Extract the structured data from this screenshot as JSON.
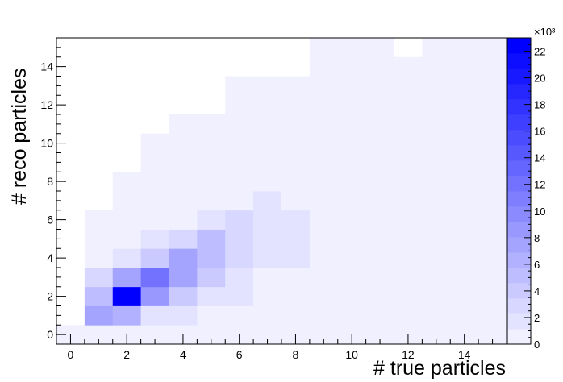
{
  "chart_data": {
    "type": "heatmap",
    "title": "",
    "xlabel": "# true particles",
    "ylabel": "# reco particles",
    "xlim": [
      -0.5,
      15.5
    ],
    "ylim": [
      -0.5,
      15.5
    ],
    "x_ticks": [
      "0",
      "2",
      "4",
      "6",
      "8",
      "10",
      "12",
      "14"
    ],
    "y_ticks": [
      "0",
      "2",
      "4",
      "6",
      "8",
      "10",
      "12",
      "14"
    ],
    "colorbar": {
      "range": [
        0,
        23
      ],
      "multiplier": "×10³",
      "ticks": [
        "0",
        "2",
        "4",
        "6",
        "8",
        "10",
        "12",
        "14",
        "16",
        "18",
        "20",
        "22"
      ],
      "low_color": "#f0f0ff",
      "high_color": "#0000ff"
    },
    "z_unit": "thousands",
    "cells": [
      [
        0,
        0,
        0
      ],
      [
        1,
        0,
        0.1
      ],
      [
        2,
        0,
        0.1
      ],
      [
        3,
        0,
        0.1
      ],
      [
        4,
        0,
        0.1
      ],
      [
        5,
        0,
        0.1
      ],
      [
        6,
        0,
        0.1
      ],
      [
        7,
        0,
        0.1
      ],
      [
        8,
        0,
        0.1
      ],
      [
        9,
        0,
        0.1
      ],
      [
        10,
        0,
        0.1
      ],
      [
        11,
        0,
        0.1
      ],
      [
        12,
        0,
        0.1
      ],
      [
        13,
        0,
        0.1
      ],
      [
        14,
        0,
        0.1
      ],
      [
        15,
        0,
        0.1
      ],
      [
        1,
        1,
        8
      ],
      [
        2,
        1,
        6.5
      ],
      [
        3,
        1,
        1.5
      ],
      [
        4,
        1,
        1.5
      ],
      [
        5,
        1,
        0.1
      ],
      [
        6,
        1,
        0.1
      ],
      [
        7,
        1,
        0.1
      ],
      [
        8,
        1,
        0.1
      ],
      [
        9,
        1,
        0.1
      ],
      [
        10,
        1,
        0.1
      ],
      [
        11,
        1,
        0.1
      ],
      [
        12,
        1,
        0.1
      ],
      [
        13,
        1,
        0.1
      ],
      [
        14,
        1,
        0.1
      ],
      [
        15,
        1,
        0.1
      ],
      [
        1,
        2,
        5
      ],
      [
        2,
        2,
        23
      ],
      [
        3,
        2,
        9
      ],
      [
        4,
        2,
        4
      ],
      [
        5,
        2,
        1.5
      ],
      [
        6,
        2,
        1.2
      ],
      [
        7,
        2,
        0.1
      ],
      [
        8,
        2,
        0.1
      ],
      [
        9,
        2,
        0.1
      ],
      [
        10,
        2,
        0.1
      ],
      [
        11,
        2,
        0.1
      ],
      [
        12,
        2,
        0.1
      ],
      [
        13,
        2,
        0.1
      ],
      [
        14,
        2,
        0.1
      ],
      [
        15,
        2,
        0.1
      ],
      [
        1,
        3,
        2.5
      ],
      [
        2,
        3,
        7.5
      ],
      [
        3,
        3,
        12.5
      ],
      [
        4,
        3,
        7
      ],
      [
        5,
        3,
        4
      ],
      [
        6,
        3,
        1.5
      ],
      [
        7,
        3,
        1
      ],
      [
        8,
        3,
        0.1
      ],
      [
        9,
        3,
        0.1
      ],
      [
        10,
        3,
        0.1
      ],
      [
        11,
        3,
        0.1
      ],
      [
        12,
        3,
        0.1
      ],
      [
        13,
        3,
        0.1
      ],
      [
        14,
        3,
        0.1
      ],
      [
        15,
        3,
        0.1
      ],
      [
        1,
        4,
        0.8
      ],
      [
        2,
        4,
        2
      ],
      [
        3,
        4,
        4
      ],
      [
        4,
        4,
        8
      ],
      [
        5,
        4,
        5
      ],
      [
        6,
        4,
        2.5
      ],
      [
        7,
        4,
        1.5
      ],
      [
        8,
        4,
        1.5
      ],
      [
        9,
        4,
        0.1
      ],
      [
        10,
        4,
        0.1
      ],
      [
        11,
        4,
        0.1
      ],
      [
        12,
        4,
        0.1
      ],
      [
        13,
        4,
        0.1
      ],
      [
        14,
        4,
        0.1
      ],
      [
        15,
        4,
        0.1
      ],
      [
        1,
        5,
        0.5
      ],
      [
        2,
        5,
        0.8
      ],
      [
        3,
        5,
        2
      ],
      [
        4,
        5,
        3
      ],
      [
        5,
        5,
        5
      ],
      [
        6,
        5,
        3
      ],
      [
        7,
        5,
        1.5
      ],
      [
        8,
        5,
        1.5
      ],
      [
        9,
        5,
        0.1
      ],
      [
        10,
        5,
        0.1
      ],
      [
        11,
        5,
        0.1
      ],
      [
        12,
        5,
        0.1
      ],
      [
        13,
        5,
        0.1
      ],
      [
        14,
        5,
        0.1
      ],
      [
        15,
        5,
        0.1
      ],
      [
        1,
        6,
        0.5
      ],
      [
        2,
        6,
        0.5
      ],
      [
        3,
        6,
        0.5
      ],
      [
        4,
        6,
        0.5
      ],
      [
        5,
        6,
        1.5
      ],
      [
        6,
        6,
        3
      ],
      [
        7,
        6,
        1.5
      ],
      [
        8,
        6,
        1.5
      ],
      [
        9,
        6,
        0.1
      ],
      [
        10,
        6,
        0.1
      ],
      [
        11,
        6,
        0.1
      ],
      [
        12,
        6,
        0.1
      ],
      [
        13,
        6,
        0.1
      ],
      [
        14,
        6,
        0.1
      ],
      [
        15,
        6,
        0.1
      ],
      [
        2,
        7,
        0.1
      ],
      [
        3,
        7,
        0.1
      ],
      [
        4,
        7,
        0.1
      ],
      [
        5,
        7,
        0.1
      ],
      [
        6,
        7,
        0.5
      ],
      [
        7,
        7,
        1.5
      ],
      [
        8,
        7,
        0.1
      ],
      [
        9,
        7,
        0.1
      ],
      [
        10,
        7,
        0.1
      ],
      [
        11,
        7,
        0.1
      ],
      [
        12,
        7,
        0.1
      ],
      [
        13,
        7,
        0.1
      ],
      [
        14,
        7,
        0.1
      ],
      [
        15,
        7,
        0.1
      ],
      [
        2,
        8,
        0.1
      ],
      [
        3,
        8,
        0.1
      ],
      [
        4,
        8,
        0.1
      ],
      [
        5,
        8,
        0.1
      ],
      [
        6,
        8,
        0.1
      ],
      [
        7,
        8,
        0.1
      ],
      [
        8,
        8,
        0.1
      ],
      [
        9,
        8,
        0.1
      ],
      [
        10,
        8,
        0.1
      ],
      [
        11,
        8,
        0.1
      ],
      [
        12,
        8,
        0.1
      ],
      [
        13,
        8,
        0.1
      ],
      [
        14,
        8,
        0.1
      ],
      [
        15,
        8,
        0.1
      ],
      [
        3,
        9,
        0.1
      ],
      [
        4,
        9,
        0.1
      ],
      [
        5,
        9,
        0.1
      ],
      [
        6,
        9,
        0.1
      ],
      [
        7,
        9,
        0.1
      ],
      [
        8,
        9,
        0.1
      ],
      [
        9,
        9,
        0.1
      ],
      [
        10,
        9,
        0.1
      ],
      [
        11,
        9,
        0.1
      ],
      [
        12,
        9,
        0.1
      ],
      [
        13,
        9,
        0.1
      ],
      [
        14,
        9,
        0.1
      ],
      [
        15,
        9,
        0.1
      ],
      [
        3,
        10,
        0.1
      ],
      [
        4,
        10,
        0.1
      ],
      [
        5,
        10,
        0.1
      ],
      [
        6,
        10,
        0.1
      ],
      [
        7,
        10,
        0.1
      ],
      [
        8,
        10,
        0.1
      ],
      [
        9,
        10,
        0.1
      ],
      [
        10,
        10,
        0.1
      ],
      [
        11,
        10,
        0.1
      ],
      [
        12,
        10,
        0.1
      ],
      [
        13,
        10,
        0.1
      ],
      [
        14,
        10,
        0.1
      ],
      [
        15,
        10,
        0.1
      ],
      [
        4,
        11,
        0.1
      ],
      [
        5,
        11,
        0.1
      ],
      [
        6,
        11,
        0.1
      ],
      [
        7,
        11,
        0.1
      ],
      [
        8,
        11,
        0.1
      ],
      [
        9,
        11,
        0.1
      ],
      [
        10,
        11,
        0.1
      ],
      [
        11,
        11,
        0.1
      ],
      [
        12,
        11,
        0.1
      ],
      [
        13,
        11,
        0.1
      ],
      [
        14,
        11,
        0.1
      ],
      [
        15,
        11,
        0.1
      ],
      [
        6,
        12,
        0.1
      ],
      [
        7,
        12,
        0.1
      ],
      [
        8,
        12,
        0.1
      ],
      [
        9,
        12,
        0.1
      ],
      [
        10,
        12,
        0.1
      ],
      [
        11,
        12,
        0.1
      ],
      [
        12,
        12,
        0.1
      ],
      [
        13,
        12,
        0.1
      ],
      [
        14,
        12,
        0.1
      ],
      [
        15,
        12,
        0.1
      ],
      [
        6,
        13,
        0.1
      ],
      [
        7,
        13,
        0.1
      ],
      [
        8,
        13,
        0.1
      ],
      [
        9,
        13,
        0.1
      ],
      [
        10,
        13,
        0.1
      ],
      [
        11,
        13,
        0.1
      ],
      [
        12,
        13,
        0.1
      ],
      [
        13,
        13,
        0.1
      ],
      [
        14,
        13,
        0.1
      ],
      [
        15,
        13,
        0.1
      ],
      [
        9,
        14,
        0.1
      ],
      [
        10,
        14,
        0.1
      ],
      [
        11,
        14,
        0.1
      ],
      [
        12,
        14,
        0.1
      ],
      [
        13,
        14,
        0.1
      ],
      [
        14,
        14,
        0.1
      ],
      [
        15,
        14,
        0.1
      ],
      [
        9,
        15,
        0.1
      ],
      [
        10,
        15,
        0.1
      ],
      [
        11,
        15,
        0.1
      ],
      [
        13,
        15,
        0.1
      ],
      [
        14,
        15,
        0.1
      ],
      [
        15,
        15,
        0.1
      ]
    ],
    "grid": false,
    "legend": "colorbar-right"
  }
}
